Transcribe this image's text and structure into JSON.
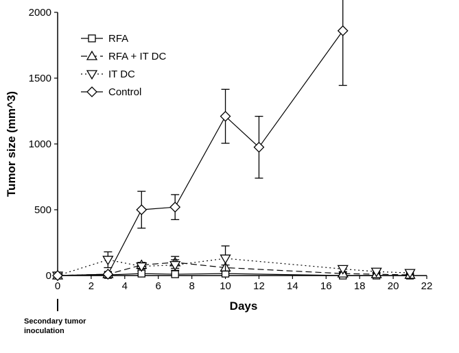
{
  "chart_data": {
    "type": "line",
    "title": "",
    "xlabel": "Days",
    "ylabel": "Tumor size (mm^3)",
    "xlim": [
      0,
      22
    ],
    "ylim": [
      0,
      2000
    ],
    "xticks": [
      0,
      2,
      4,
      6,
      8,
      10,
      12,
      14,
      16,
      18,
      20,
      22
    ],
    "yticks": [
      0,
      500,
      1000,
      1500,
      2000
    ],
    "grid": false,
    "legend_position": "top-left",
    "annotation": {
      "text_lines": [
        "Secondary tumor",
        "inoculation"
      ],
      "x": 0
    },
    "series": [
      {
        "name": "RFA",
        "marker": "square",
        "line_style": "solid",
        "x": [
          0,
          3,
          5,
          7,
          10,
          17,
          19,
          21
        ],
        "y": [
          0,
          5,
          15,
          10,
          15,
          0,
          0,
          0
        ],
        "err": [
          0,
          0,
          20,
          0,
          15,
          0,
          0,
          0
        ]
      },
      {
        "name": "RFA + IT DC",
        "marker": "triangle-up",
        "line_style": "dashed",
        "x": [
          0,
          3,
          5,
          7,
          10,
          17,
          19,
          21
        ],
        "y": [
          0,
          10,
          80,
          100,
          60,
          15,
          10,
          5
        ],
        "err": [
          0,
          0,
          20,
          45,
          20,
          0,
          0,
          0
        ]
      },
      {
        "name": "IT DC",
        "marker": "triangle-down",
        "line_style": "dotted",
        "x": [
          0,
          3,
          5,
          7,
          10,
          17,
          19,
          21
        ],
        "y": [
          0,
          120,
          70,
          80,
          130,
          50,
          30,
          20
        ],
        "err": [
          0,
          60,
          20,
          40,
          95,
          20,
          10,
          10
        ]
      },
      {
        "name": "Control",
        "marker": "diamond",
        "line_style": "solid",
        "x": [
          0,
          3,
          5,
          7,
          10,
          12,
          17
        ],
        "y": [
          0,
          10,
          500,
          520,
          1210,
          975,
          1860
        ],
        "err": [
          0,
          0,
          140,
          95,
          205,
          235,
          415
        ]
      }
    ]
  }
}
